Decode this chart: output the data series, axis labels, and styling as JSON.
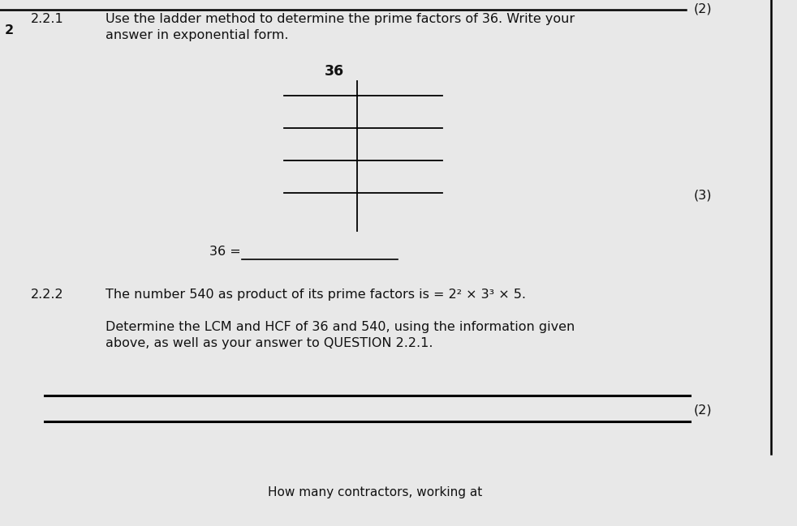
{
  "bg_color": "#e8e8e8",
  "question_number_left": "2",
  "q221_label": "2.2.1",
  "q221_text_line1": "Use the ladder method to determine the prime factors of 36. Write your",
  "q221_text_line2": "answer in exponential form.",
  "q222_label": "2.2.2",
  "q222_text_line1": "The number 540 as product of its prime factors is = 2² × 3³ × 5.",
  "q222_text_line2": "Determine the LCM and HCF of 36 and 540, using the information given",
  "q222_text_line3": "above, as well as your answer to QUESTION 2.2.1.",
  "marks_top": "(2)",
  "marks_221": "(3)",
  "marks_222": "(2)",
  "ladder_number": "36",
  "answer_line_label": "36 =",
  "bottom_text": "How many contractors, working at",
  "font_size_body": 11.5,
  "text_color": "#111111"
}
